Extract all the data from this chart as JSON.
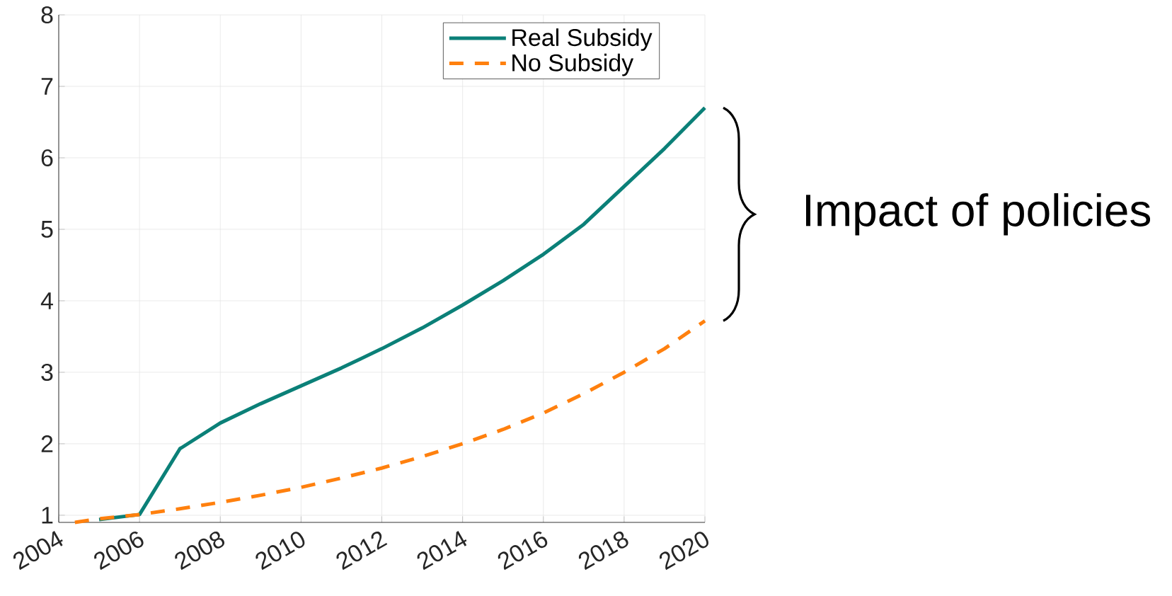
{
  "chart_data": {
    "type": "line",
    "annotations": [
      "Impact of policies"
    ],
    "xlim": [
      2004,
      2020
    ],
    "xticks": [
      2004,
      2006,
      2008,
      2010,
      2012,
      2014,
      2016,
      2018,
      2020
    ],
    "ylim": [
      0.9,
      8
    ],
    "yticks": [
      1,
      2,
      3,
      4,
      5,
      6,
      7,
      8
    ],
    "grid": true,
    "legend": "top right",
    "x": [
      2004.4,
      2005,
      2006,
      2007,
      2008,
      2009,
      2010,
      2011,
      2012,
      2013,
      2014,
      2015,
      2016,
      2017,
      2018,
      2019,
      2020
    ],
    "series": [
      {
        "name": "Real Subsidy",
        "color": "#0b8078",
        "line_style": "solid",
        "values": [
          null,
          0.94,
          1.01,
          1.93,
          2.29,
          2.56,
          2.81,
          3.06,
          3.33,
          3.62,
          3.94,
          4.28,
          4.65,
          5.07,
          5.6,
          6.13,
          6.7
        ]
      },
      {
        "name": "No Subsidy",
        "color": "#ff800e",
        "line_style": "dashed",
        "values": [
          0.9,
          0.95,
          1.01,
          1.09,
          1.18,
          1.28,
          1.39,
          1.52,
          1.66,
          1.82,
          2.0,
          2.2,
          2.43,
          2.7,
          3.0,
          3.33,
          3.72
        ]
      }
    ]
  }
}
